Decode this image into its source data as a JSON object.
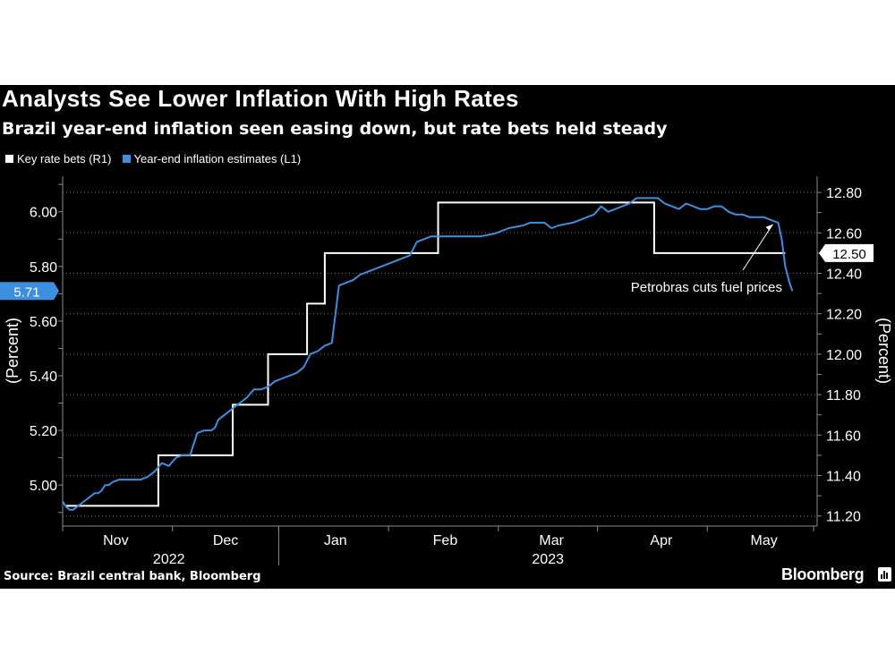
{
  "chart_data": {
    "type": "line",
    "title": "Analysts See Lower Inflation With High Rates",
    "subtitle": "Brazil year-end inflation seen easing down, but rate bets held steady",
    "source": "Source: Brazil central bank, Bloomberg",
    "brand": "Bloomberg",
    "left_axis": {
      "label": "(Percent)",
      "range": [
        4.85,
        6.13
      ],
      "ticks": [
        5.0,
        5.2,
        5.4,
        5.6,
        5.8,
        6.0
      ],
      "tick_labels": [
        "5.00",
        "5.20",
        "5.40",
        "5.60",
        "5.80",
        "6.00"
      ],
      "last_value_label": "5.71"
    },
    "right_axis": {
      "label": "(Percent)",
      "range": [
        11.15,
        12.88
      ],
      "ticks": [
        11.2,
        11.4,
        11.6,
        11.8,
        12.0,
        12.2,
        12.4,
        12.6,
        12.8
      ],
      "tick_labels": [
        "11.20",
        "11.40",
        "11.60",
        "11.80",
        "12.00",
        "12.20",
        "12.40",
        "12.60",
        "12.80"
      ],
      "last_value_label": "12.50"
    },
    "x_axis": {
      "month_labels": [
        "Nov",
        "Dec",
        "Jan",
        "Feb",
        "Mar",
        "Apr",
        "May"
      ],
      "month_day_centers": [
        15,
        46,
        77,
        108,
        138,
        169,
        198
      ],
      "month_boundaries": [
        0,
        31,
        61,
        92,
        123,
        151,
        182,
        212
      ],
      "year_labels": [
        "2022",
        "2023"
      ],
      "year_day_centers": [
        30,
        137
      ],
      "year_boundary_day": 61,
      "day_range": [
        0,
        213
      ]
    },
    "series": [
      {
        "name": "Key rate bets",
        "legend": "Key rate bets (R1)",
        "axis": "right",
        "color": "#ffffff",
        "step": true,
        "x": [
          1,
          12,
          27,
          48,
          58,
          69,
          74,
          96,
          106,
          167,
          204
        ],
        "y": [
          11.25,
          11.25,
          11.5,
          11.75,
          12.0,
          12.25,
          12.5,
          12.5,
          12.75,
          12.5,
          12.5
        ]
      },
      {
        "name": "Year-end inflation estimates",
        "legend": "Year-end inflation estimates (L1)",
        "axis": "left",
        "color": "#3d8fe0",
        "step": true,
        "x": [
          0,
          1,
          2,
          3,
          4,
          5,
          6,
          7,
          8,
          9,
          10,
          11,
          12,
          13,
          14,
          16,
          18,
          20,
          22,
          24,
          26,
          28,
          30,
          32,
          34,
          36,
          38,
          40,
          42,
          43,
          44,
          46,
          48,
          50,
          52,
          54,
          56,
          58,
          60,
          62,
          64,
          66,
          68,
          70,
          72,
          74,
          76,
          78,
          80,
          82,
          84,
          86,
          88,
          90,
          92,
          94,
          96,
          98,
          100,
          102,
          104,
          106,
          108,
          110,
          112,
          114,
          118,
          122,
          126,
          130,
          132,
          134,
          136,
          138,
          140,
          144,
          146,
          148,
          150,
          152,
          154,
          156,
          158,
          160,
          162,
          164,
          166,
          168,
          170,
          172,
          174,
          176,
          178,
          180,
          182,
          184,
          186,
          188,
          190,
          192,
          194,
          196,
          198,
          200,
          202,
          203,
          204,
          205,
          206
        ],
        "y": [
          4.94,
          4.92,
          4.91,
          4.91,
          4.92,
          4.93,
          4.94,
          4.95,
          4.96,
          4.97,
          4.97,
          4.98,
          5.0,
          5.0,
          5.01,
          5.02,
          5.02,
          5.02,
          5.02,
          5.03,
          5.05,
          5.08,
          5.07,
          5.1,
          5.11,
          5.11,
          5.19,
          5.2,
          5.2,
          5.21,
          5.24,
          5.26,
          5.28,
          5.3,
          5.32,
          5.35,
          5.35,
          5.36,
          5.38,
          5.39,
          5.4,
          5.41,
          5.43,
          5.48,
          5.49,
          5.51,
          5.52,
          5.73,
          5.74,
          5.75,
          5.77,
          5.78,
          5.79,
          5.8,
          5.81,
          5.82,
          5.83,
          5.84,
          5.89,
          5.9,
          5.91,
          5.91,
          5.91,
          5.91,
          5.91,
          5.91,
          5.91,
          5.92,
          5.94,
          5.95,
          5.96,
          5.96,
          5.96,
          5.94,
          5.95,
          5.96,
          5.97,
          5.98,
          5.99,
          6.02,
          6.0,
          6.01,
          6.02,
          6.03,
          6.05,
          6.05,
          6.05,
          6.05,
          6.03,
          6.02,
          6.01,
          6.03,
          6.02,
          6.01,
          6.01,
          6.02,
          6.02,
          6.0,
          5.99,
          5.99,
          5.98,
          5.98,
          5.98,
          5.97,
          5.96,
          5.9,
          5.8,
          5.75,
          5.71
        ]
      }
    ],
    "annotation": {
      "text": "Petrobras cuts fuel prices",
      "points_to_day": 202,
      "points_to_value": 6.0
    }
  }
}
